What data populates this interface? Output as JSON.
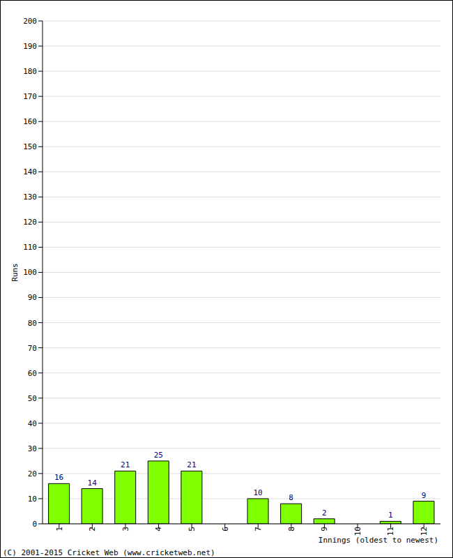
{
  "chart_data": {
    "type": "bar",
    "categories": [
      "1",
      "2",
      "3",
      "4",
      "5",
      "6",
      "7",
      "8",
      "9",
      "10",
      "11",
      "12"
    ],
    "values": [
      16,
      14,
      21,
      25,
      21,
      0,
      10,
      8,
      2,
      0,
      1,
      9
    ],
    "color": "#80ff00",
    "ylim": [
      0,
      200
    ],
    "yticks": [
      0,
      10,
      20,
      30,
      40,
      50,
      60,
      70,
      80,
      90,
      100,
      110,
      120,
      130,
      140,
      150,
      160,
      170,
      180,
      190,
      200
    ],
    "xlabel": "Innings (oldest to newest)",
    "ylabel": "Runs",
    "annotation": "(C) 2001-2015 Cricket Web (www.cricketweb.net)",
    "grid": true,
    "data_labels": true
  }
}
